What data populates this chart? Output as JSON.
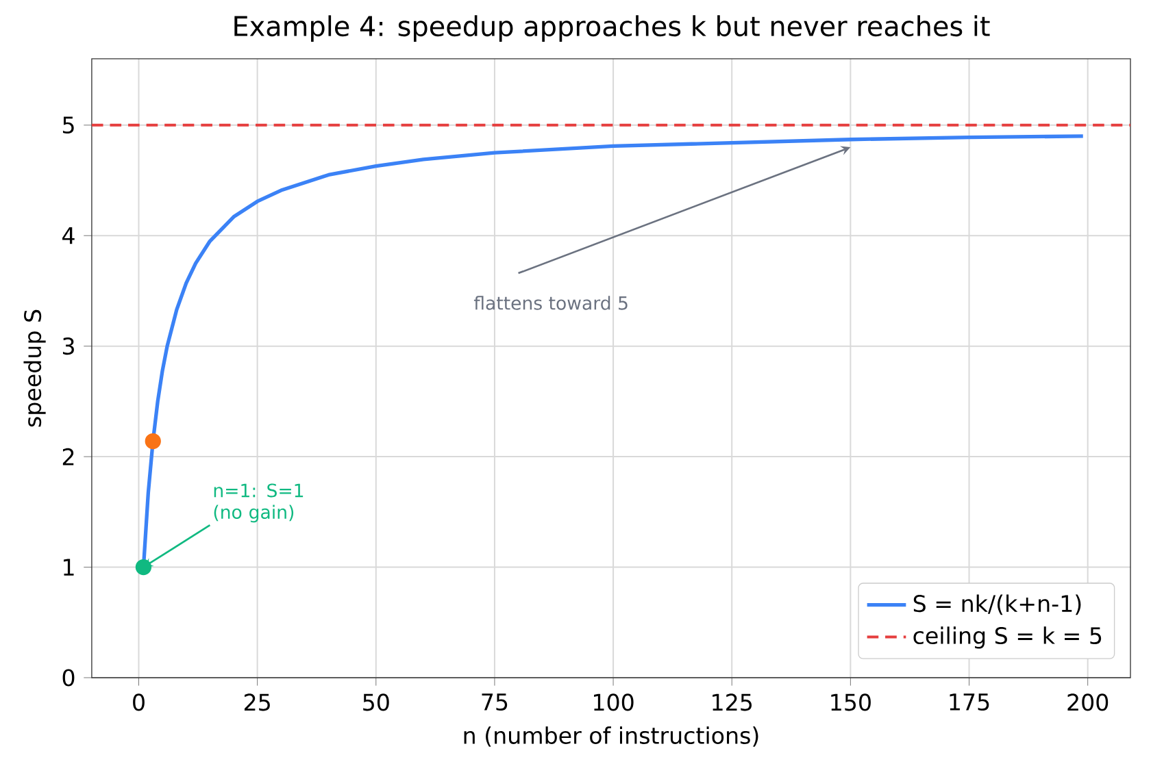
{
  "chart_data": {
    "type": "line",
    "title": "Example 4: speedup approaches k but never reaches it",
    "xlabel": "n  (number of instructions)",
    "ylabel": "speedup S",
    "xlim": [
      -9.9,
      209
    ],
    "ylim": [
      0,
      5.6
    ],
    "xticks": [
      0,
      25,
      50,
      75,
      100,
      125,
      150,
      175,
      200
    ],
    "yticks": [
      0,
      1,
      2,
      3,
      4,
      5
    ],
    "grid": true,
    "legend": "bottom right",
    "series": [
      {
        "name": "S = nk/(k+n-1)",
        "color": "#3b82f6",
        "marker": "none",
        "line_style": "solid",
        "x": [
          1,
          2,
          3,
          4,
          5,
          6,
          8,
          10,
          12,
          15,
          20,
          25,
          30,
          40,
          50,
          60,
          75,
          100,
          125,
          150,
          175,
          199
        ],
        "values": [
          1.0,
          1.67,
          2.14,
          2.5,
          2.78,
          3.0,
          3.33,
          3.57,
          3.75,
          3.95,
          4.17,
          4.31,
          4.41,
          4.55,
          4.63,
          4.69,
          4.75,
          4.81,
          4.84,
          4.87,
          4.89,
          4.9
        ]
      },
      {
        "type": "scatter",
        "color": "#10b981",
        "marker": "circle",
        "x": [
          1
        ],
        "values": [
          1.0
        ]
      },
      {
        "type": "scatter",
        "color": "#f97316",
        "marker": "circle",
        "x": [
          3
        ],
        "values": [
          2.14
        ]
      }
    ],
    "ref_lines": [
      {
        "axis": "y",
        "value": 5,
        "label": "ceiling S = k = 5",
        "color": "#e53e3e",
        "line_style": "dashed"
      }
    ],
    "annotations": [
      {
        "text": "n=1: S=1 (no gain)",
        "x": 1,
        "y": 1
      },
      {
        "text": "flattens toward 5",
        "x": 150,
        "y": 4.8
      }
    ]
  }
}
